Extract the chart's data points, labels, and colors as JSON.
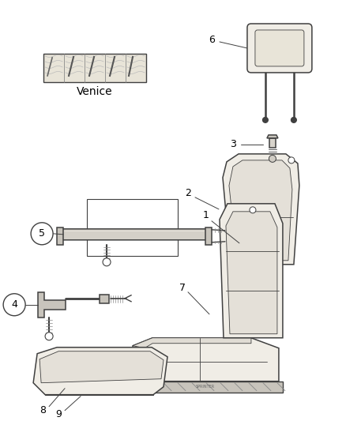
{
  "background_color": "#ffffff",
  "line_color": "#404040",
  "label_color": "#000000",
  "fabric_label": "Venice",
  "figsize": [
    4.38,
    5.33
  ],
  "dpi": 100
}
